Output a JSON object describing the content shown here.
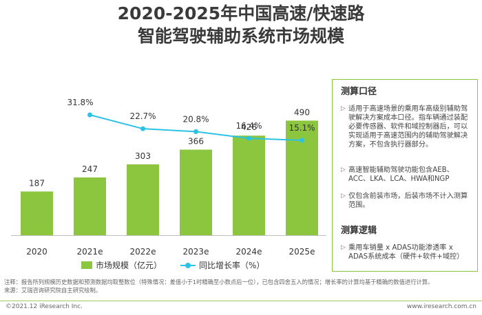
{
  "chart_data": {
    "type": "bar",
    "title": "2020-2025年中国高速/快速路",
    "subtitle": "智能驾驶辅助系统市场规模",
    "categories": [
      "2020",
      "2021e",
      "2022e",
      "2023e",
      "2024e",
      "2025e"
    ],
    "series": [
      {
        "name": "市场规模（亿元）",
        "type": "bar",
        "color": "#8cc63f",
        "values": [
          187,
          247,
          303,
          366,
          426,
          490
        ],
        "labels": [
          "187",
          "247",
          "303",
          "366",
          "426",
          "490"
        ]
      },
      {
        "name": "同比增长率（%）",
        "type": "line",
        "color": "#2bc2e6",
        "x": [
          "2021e",
          "2022e",
          "2023e",
          "2024e",
          "2025e"
        ],
        "values": [
          31.8,
          22.7,
          20.8,
          16.4,
          15.1
        ],
        "labels": [
          "31.8%",
          "22.7%",
          "20.8%",
          "16.4%",
          "15.1%"
        ]
      }
    ],
    "legend": "bottom"
  },
  "panel": {
    "heading1": "测算口径",
    "bullets1": [
      "适用于高速场景的乘用车高级别辅助驾驶解决方案成本口径。指车辆通过装配必要传感器、软件和域控制器后，可以实现适用于高速范围内的辅助驾驶解决方案，不包含执行器部分。",
      "高速智能辅助驾驶功能包含AEB、ACC、LKA、LCA、HWA和NGP",
      "仅包含前装市场，后装市场不计入测算范围。"
    ],
    "heading2": "测算逻辑",
    "bullets2": [
      "乘用车销量 x ADAS功能渗透率 x ADAS系统成本（硬件+软件+域控）"
    ],
    "bullet_mark": "▷"
  },
  "notes": {
    "line1": "注释：报告所列规模历史数据和预测数据均取整数位（特殊情况：差值小于1时精确至小数点后一位），已包含四舍五入的情况；增长率的计算均基于精确的数值进行计算。",
    "line2": "来源：艾瑞咨询研究院自主研究绘制。"
  },
  "footer": {
    "left": "©2021.12 iResearch Inc.",
    "right": "www.iresearch.com.cn"
  }
}
